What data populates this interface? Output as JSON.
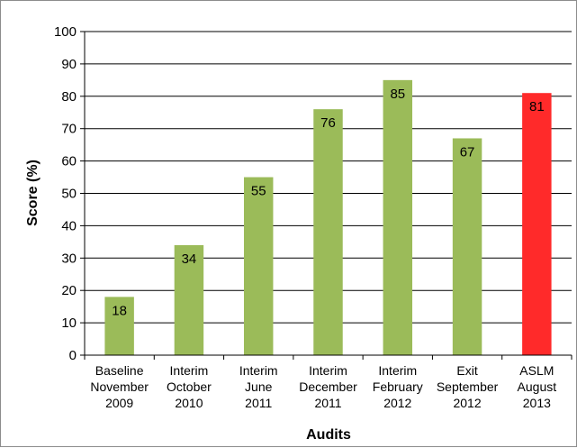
{
  "chart_data": {
    "type": "bar",
    "title": "",
    "xlabel": "Audits",
    "ylabel": "Score (%)",
    "ylim": [
      0,
      100
    ],
    "yticks": [
      "0",
      "10",
      "20",
      "30",
      "40",
      "50",
      "60",
      "70",
      "80",
      "90",
      "100"
    ],
    "grid": true,
    "legend": "none",
    "categories": [
      [
        "Baseline",
        "November",
        "2009"
      ],
      [
        "Interim",
        "October",
        "2010"
      ],
      [
        "Interim",
        "June",
        "2011"
      ],
      [
        "Interim",
        "December",
        "2011"
      ],
      [
        "Interim",
        "February",
        "2012"
      ],
      [
        "Exit",
        "September",
        "2012"
      ],
      [
        "ASLM",
        "August",
        "2013"
      ]
    ],
    "values": [
      18,
      34,
      55,
      76,
      85,
      67,
      81
    ],
    "data_labels": [
      "18",
      "34",
      "55",
      "76",
      "85",
      "67",
      "81"
    ],
    "colors": [
      "#9bbb59",
      "#9bbb59",
      "#9bbb59",
      "#9bbb59",
      "#9bbb59",
      "#9bbb59",
      "#ff2a2a"
    ]
  }
}
